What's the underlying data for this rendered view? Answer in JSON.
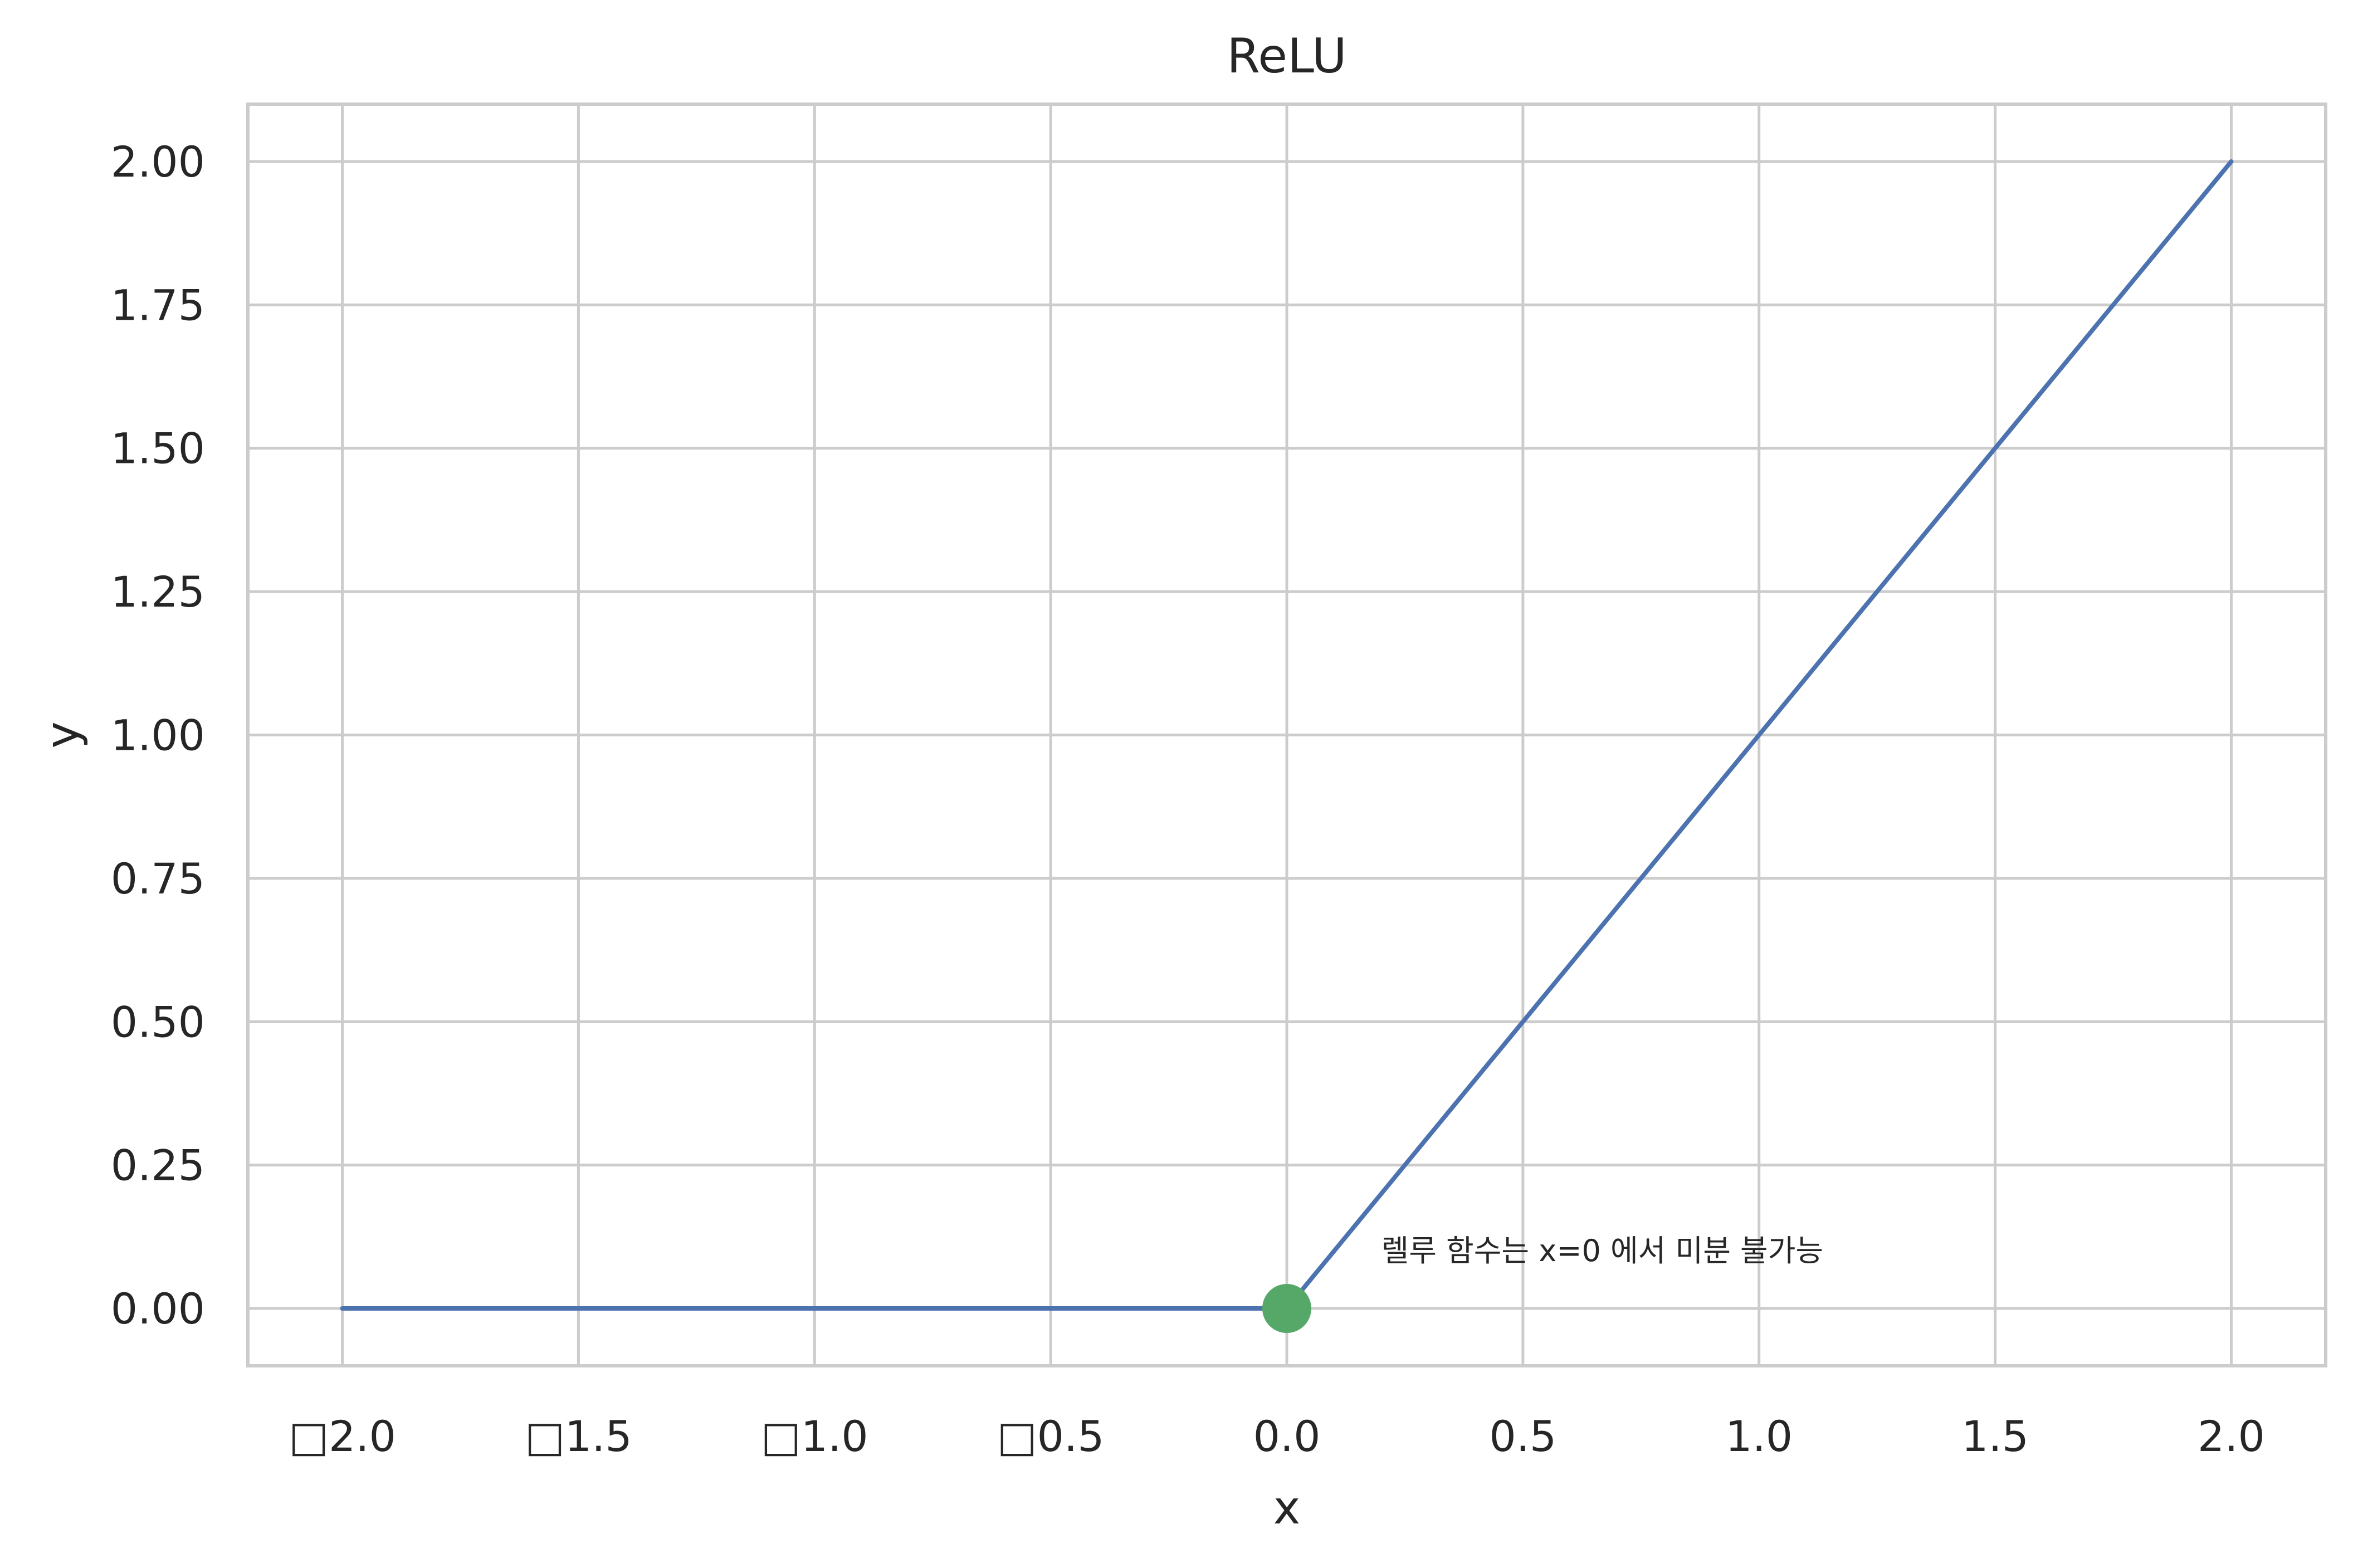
{
  "chart_data": {
    "type": "line",
    "title": "ReLU",
    "xlabel": "x",
    "ylabel": "y",
    "xlim": [
      -2.2,
      2.2
    ],
    "ylim": [
      -0.1,
      2.1
    ],
    "x_ticks": [
      -2.0,
      -1.5,
      -1.0,
      -0.5,
      0.0,
      0.5,
      1.0,
      1.5,
      2.0
    ],
    "x_tick_labels": [
      "□2.0",
      "□1.5",
      "□1.0",
      "□0.5",
      "0.0",
      "0.5",
      "1.0",
      "1.5",
      "2.0"
    ],
    "y_ticks": [
      0.0,
      0.25,
      0.5,
      0.75,
      1.0,
      1.25,
      1.5,
      1.75,
      2.0
    ],
    "y_tick_labels": [
      "0.00",
      "0.25",
      "0.50",
      "0.75",
      "1.00",
      "1.25",
      "1.50",
      "1.75",
      "2.00"
    ],
    "grid": true,
    "series": [
      {
        "x": [
          -2.0,
          -1.5,
          -1.0,
          -0.5,
          0.0,
          0.5,
          1.0,
          1.5,
          2.0
        ],
        "y": [
          0.0,
          0.0,
          0.0,
          0.0,
          0.0,
          0.5,
          1.0,
          1.5,
          2.0
        ],
        "color": "#4c72b0"
      }
    ],
    "points": [
      {
        "x": 0.0,
        "y": 0.0,
        "color": "#55a868"
      }
    ],
    "annotation": {
      "text": "렐루 함수는 x=0 에서 미분 불가능",
      "x": 0.2,
      "y": 0.1
    }
  }
}
